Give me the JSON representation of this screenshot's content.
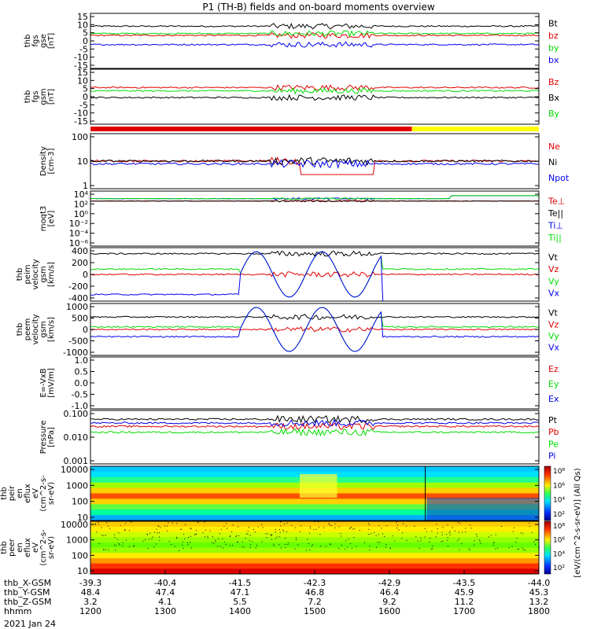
{
  "title": "P1 (TH-B) fields and on-board moments overview",
  "date": "2021 Jan 24",
  "colors": {
    "black": "#000000",
    "red": "#e00000",
    "green": "#00dd00",
    "blue": "#0000ee",
    "yellow": "#ffff00"
  },
  "chart_data": [
    {
      "type": "line",
      "id": "fgs_gse",
      "ylabel": [
        "thb",
        "fgs",
        "gse",
        "[nT]"
      ],
      "ylim": [
        -15,
        15
      ],
      "yticks": [
        "15",
        "10",
        "5",
        "0",
        "-5",
        "-10",
        "-15"
      ],
      "series": [
        {
          "name": "Bt",
          "color": "black",
          "level": 8
        },
        {
          "name": "bz",
          "color": "red",
          "level": 3
        },
        {
          "name": "by",
          "color": "green",
          "level": 4
        },
        {
          "name": "bx",
          "color": "blue",
          "level": -2
        }
      ]
    },
    {
      "type": "line",
      "id": "fgs_gsm",
      "ylabel": [
        "thb",
        "fgs",
        "gsm",
        "[nT]"
      ],
      "ylim": [
        -18,
        15
      ],
      "yticks": [
        "15",
        "10",
        "5",
        "0",
        "-5",
        "-10",
        "-15"
      ],
      "series": [
        {
          "name": "Bz",
          "color": "red",
          "level": 4
        },
        {
          "name": "Bx",
          "color": "black",
          "level": -2
        },
        {
          "name": "By",
          "color": "green",
          "level": 2
        }
      ]
    },
    {
      "type": "line",
      "id": "density",
      "log": true,
      "ylabel": [
        "Density",
        "[cm-3]"
      ],
      "ylim": [
        0.7,
        200
      ],
      "yticks": [
        "100",
        "10",
        "1"
      ],
      "series": [
        {
          "name": "Ne",
          "color": "red",
          "level": 12
        },
        {
          "name": "Ni",
          "color": "black",
          "level": 12
        },
        {
          "name": "Npot",
          "color": "blue",
          "level": 9
        }
      ]
    },
    {
      "type": "line",
      "id": "temperature",
      "log": true,
      "ylabel": [
        "moqt3",
        "[eV]"
      ],
      "ylim": [
        1e-07,
        10000.0
      ],
      "yticks": [
        "10⁴",
        "10²",
        "10⁰",
        "10⁻²",
        "10⁻⁴",
        "10⁻⁶"
      ],
      "series": [
        {
          "name": "Te⊥",
          "color": "red",
          "level": 100
        },
        {
          "name": "Te||",
          "color": "black",
          "level": 100
        },
        {
          "name": "Ti⊥",
          "color": "blue",
          "level": 300
        },
        {
          "name": "Ti||",
          "color": "green",
          "level": 300
        }
      ]
    },
    {
      "type": "line",
      "id": "peim_velocity",
      "ylabel": [
        "thb",
        "peim",
        "velocity",
        "gsm",
        "[km/s]"
      ],
      "ylim": [
        -400,
        400
      ],
      "yticks": [
        "400",
        "200",
        "0",
        "-200",
        "-400"
      ],
      "series": [
        {
          "name": "Vt",
          "color": "black",
          "level": 310
        },
        {
          "name": "Vz",
          "color": "red",
          "level": 0
        },
        {
          "name": "Vy",
          "color": "green",
          "level": 80
        },
        {
          "name": "Vx",
          "color": "blue",
          "level": -300
        }
      ]
    },
    {
      "type": "line",
      "id": "peem_velocity",
      "ylabel": [
        "thb",
        "peem",
        "velocity",
        "gsm",
        "[km/s]"
      ],
      "ylim": [
        -1000,
        1000
      ],
      "yticks": [
        "1000",
        "500",
        "0",
        "-500",
        "-1000"
      ],
      "series": [
        {
          "name": "Vt",
          "color": "black",
          "level": 480
        },
        {
          "name": "Vz",
          "color": "red",
          "level": 0
        },
        {
          "name": "Vy",
          "color": "green",
          "level": 100
        },
        {
          "name": "Vx",
          "color": "blue",
          "level": -280
        }
      ]
    },
    {
      "type": "line",
      "id": "efield",
      "ylabel": [
        "E=-VxB",
        "[mV/m]"
      ],
      "ylim": [
        -1,
        1
      ],
      "yticks": [
        "1.0",
        "0.5",
        "0.0",
        "-0.5",
        "-1.0"
      ],
      "series": [
        {
          "name": "Ez",
          "color": "red",
          "level": 0
        },
        {
          "name": "Ey",
          "color": "green",
          "level": 0
        },
        {
          "name": "Ex",
          "color": "blue",
          "level": 0
        }
      ]
    },
    {
      "type": "line",
      "id": "pressure",
      "log": true,
      "ylabel": [
        "Pressure",
        "[nPa]"
      ],
      "ylim": [
        0.0007,
        0.4
      ],
      "yticks": [
        "0.100",
        "0.010",
        "0.001"
      ],
      "series": [
        {
          "name": "Pt",
          "color": "black",
          "level": 0.14
        },
        {
          "name": "Pb",
          "color": "red",
          "level": 0.06
        },
        {
          "name": "Pe",
          "color": "green",
          "level": 0.03
        },
        {
          "name": "Pi",
          "color": "blue",
          "level": 0.09
        }
      ]
    },
    {
      "type": "heatmap",
      "id": "peir_eflux",
      "log": true,
      "ylabel": [
        "thb",
        "peir",
        "en",
        "eflux",
        "eV",
        "(cm^2-s-",
        "sr-eV)"
      ],
      "ylim": [
        5,
        25000
      ],
      "yticks": [
        "10000",
        "1000",
        "100",
        "10"
      ]
    },
    {
      "type": "heatmap",
      "id": "peer_eflux",
      "log": true,
      "ylabel": [
        "thb",
        "peer",
        "en",
        "eflux",
        "eV",
        "(cm^2-s-",
        "sr-eV)"
      ],
      "ylim": [
        5,
        25000
      ],
      "yticks": [
        "10000",
        "1000",
        "100",
        "10"
      ]
    }
  ],
  "colorbar": {
    "label": "[eV/(cm^2-s-sr-eV)] (All Qs)",
    "top_ticks": [
      "10⁸",
      "10⁶",
      "10⁴",
      "10²"
    ],
    "bottom_ticks": [
      "10⁸",
      "10⁶",
      "10⁴",
      "10²"
    ]
  },
  "x_axis": {
    "xlim": [
      1200,
      1800
    ],
    "labels": [
      {
        "name": "thb_X-GSM",
        "values": [
          "-39.3",
          "-40.4",
          "-41.5",
          "-42.3",
          "-42.9",
          "-43.5",
          "-44.0"
        ]
      },
      {
        "name": "thb_Y-GSM",
        "values": [
          "48.4",
          "47.4",
          "47.1",
          "46.8",
          "46.4",
          "45.9",
          "45.3"
        ]
      },
      {
        "name": "thb_Z-GSM",
        "values": [
          "3.2",
          "4.1",
          "5.5",
          "7.2",
          "9.2",
          "11.2",
          "13.2"
        ]
      },
      {
        "name": "hhmm",
        "values": [
          "1200",
          "1300",
          "1400",
          "1500",
          "1600",
          "1700",
          "1800"
        ]
      }
    ]
  },
  "mode_bar": {
    "segments": [
      {
        "from": 1200,
        "to": 1630,
        "color": "red"
      },
      {
        "from": 1630,
        "to": 1800,
        "color": "yellow"
      }
    ]
  }
}
